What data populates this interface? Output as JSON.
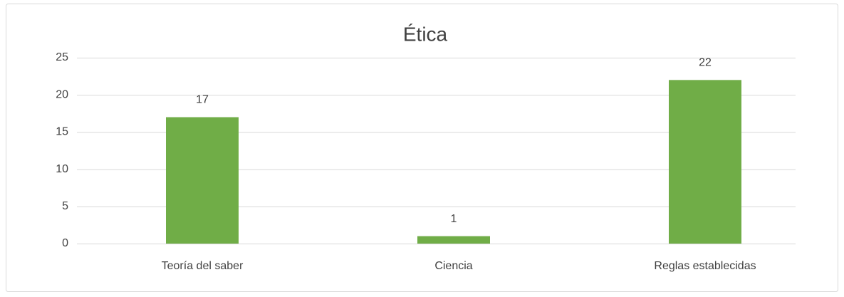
{
  "chart_data": {
    "type": "bar",
    "title": "Ética",
    "categories": [
      "Teoría del saber",
      "Ciencia",
      "Reglas establecidas"
    ],
    "values": [
      17,
      1,
      22
    ],
    "color": "#70ad47",
    "ylim": [
      0,
      25
    ],
    "yticks": [
      0,
      5,
      10,
      15,
      20,
      25
    ],
    "grid": true
  }
}
